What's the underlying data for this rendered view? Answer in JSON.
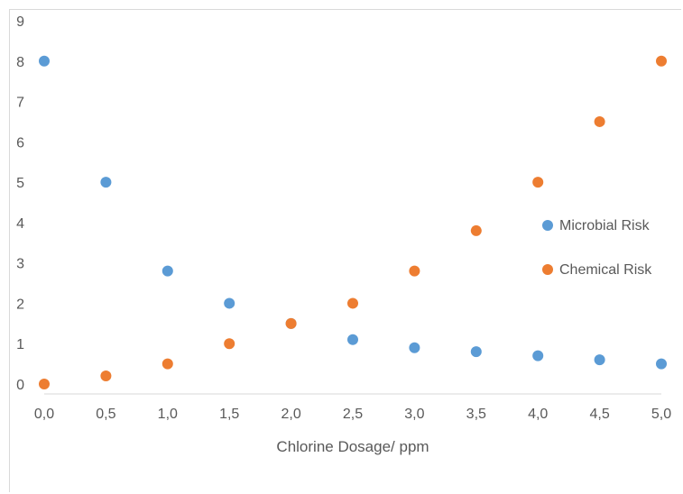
{
  "chart_data": {
    "type": "scatter",
    "title": "",
    "xlabel": "Chlorine Dosage/ ppm",
    "ylabel": "",
    "xlim": [
      0,
      5
    ],
    "ylim": [
      0,
      9
    ],
    "x_ticks": [
      "0,0",
      "0,5",
      "1,0",
      "1,5",
      "2,0",
      "2,5",
      "3,0",
      "3,5",
      "4,0",
      "4,5",
      "5,0"
    ],
    "y_ticks": [
      "0",
      "1",
      "2",
      "3",
      "4",
      "5",
      "6",
      "7",
      "8",
      "9"
    ],
    "grid": false,
    "legend_position": "right",
    "series": [
      {
        "name": "Microbial Risk",
        "color": "#5b9bd5",
        "points": [
          {
            "x": 0.0,
            "y": 8.0
          },
          {
            "x": 0.5,
            "y": 5.0
          },
          {
            "x": 1.0,
            "y": 2.8
          },
          {
            "x": 1.5,
            "y": 2.0
          },
          {
            "x": 2.0,
            "y": 1.5
          },
          {
            "x": 2.5,
            "y": 1.1
          },
          {
            "x": 3.0,
            "y": 0.9
          },
          {
            "x": 3.5,
            "y": 0.8
          },
          {
            "x": 4.0,
            "y": 0.7
          },
          {
            "x": 4.5,
            "y": 0.6
          },
          {
            "x": 5.0,
            "y": 0.5
          }
        ]
      },
      {
        "name": "Chemical Risk",
        "color": "#ed7d31",
        "points": [
          {
            "x": 0.0,
            "y": 0.0
          },
          {
            "x": 0.5,
            "y": 0.2
          },
          {
            "x": 1.0,
            "y": 0.5
          },
          {
            "x": 1.5,
            "y": 1.0
          },
          {
            "x": 2.0,
            "y": 1.5
          },
          {
            "x": 2.5,
            "y": 2.0
          },
          {
            "x": 3.0,
            "y": 2.8
          },
          {
            "x": 3.5,
            "y": 3.8
          },
          {
            "x": 4.0,
            "y": 5.0
          },
          {
            "x": 4.5,
            "y": 6.5
          },
          {
            "x": 5.0,
            "y": 8.0
          }
        ]
      }
    ]
  }
}
